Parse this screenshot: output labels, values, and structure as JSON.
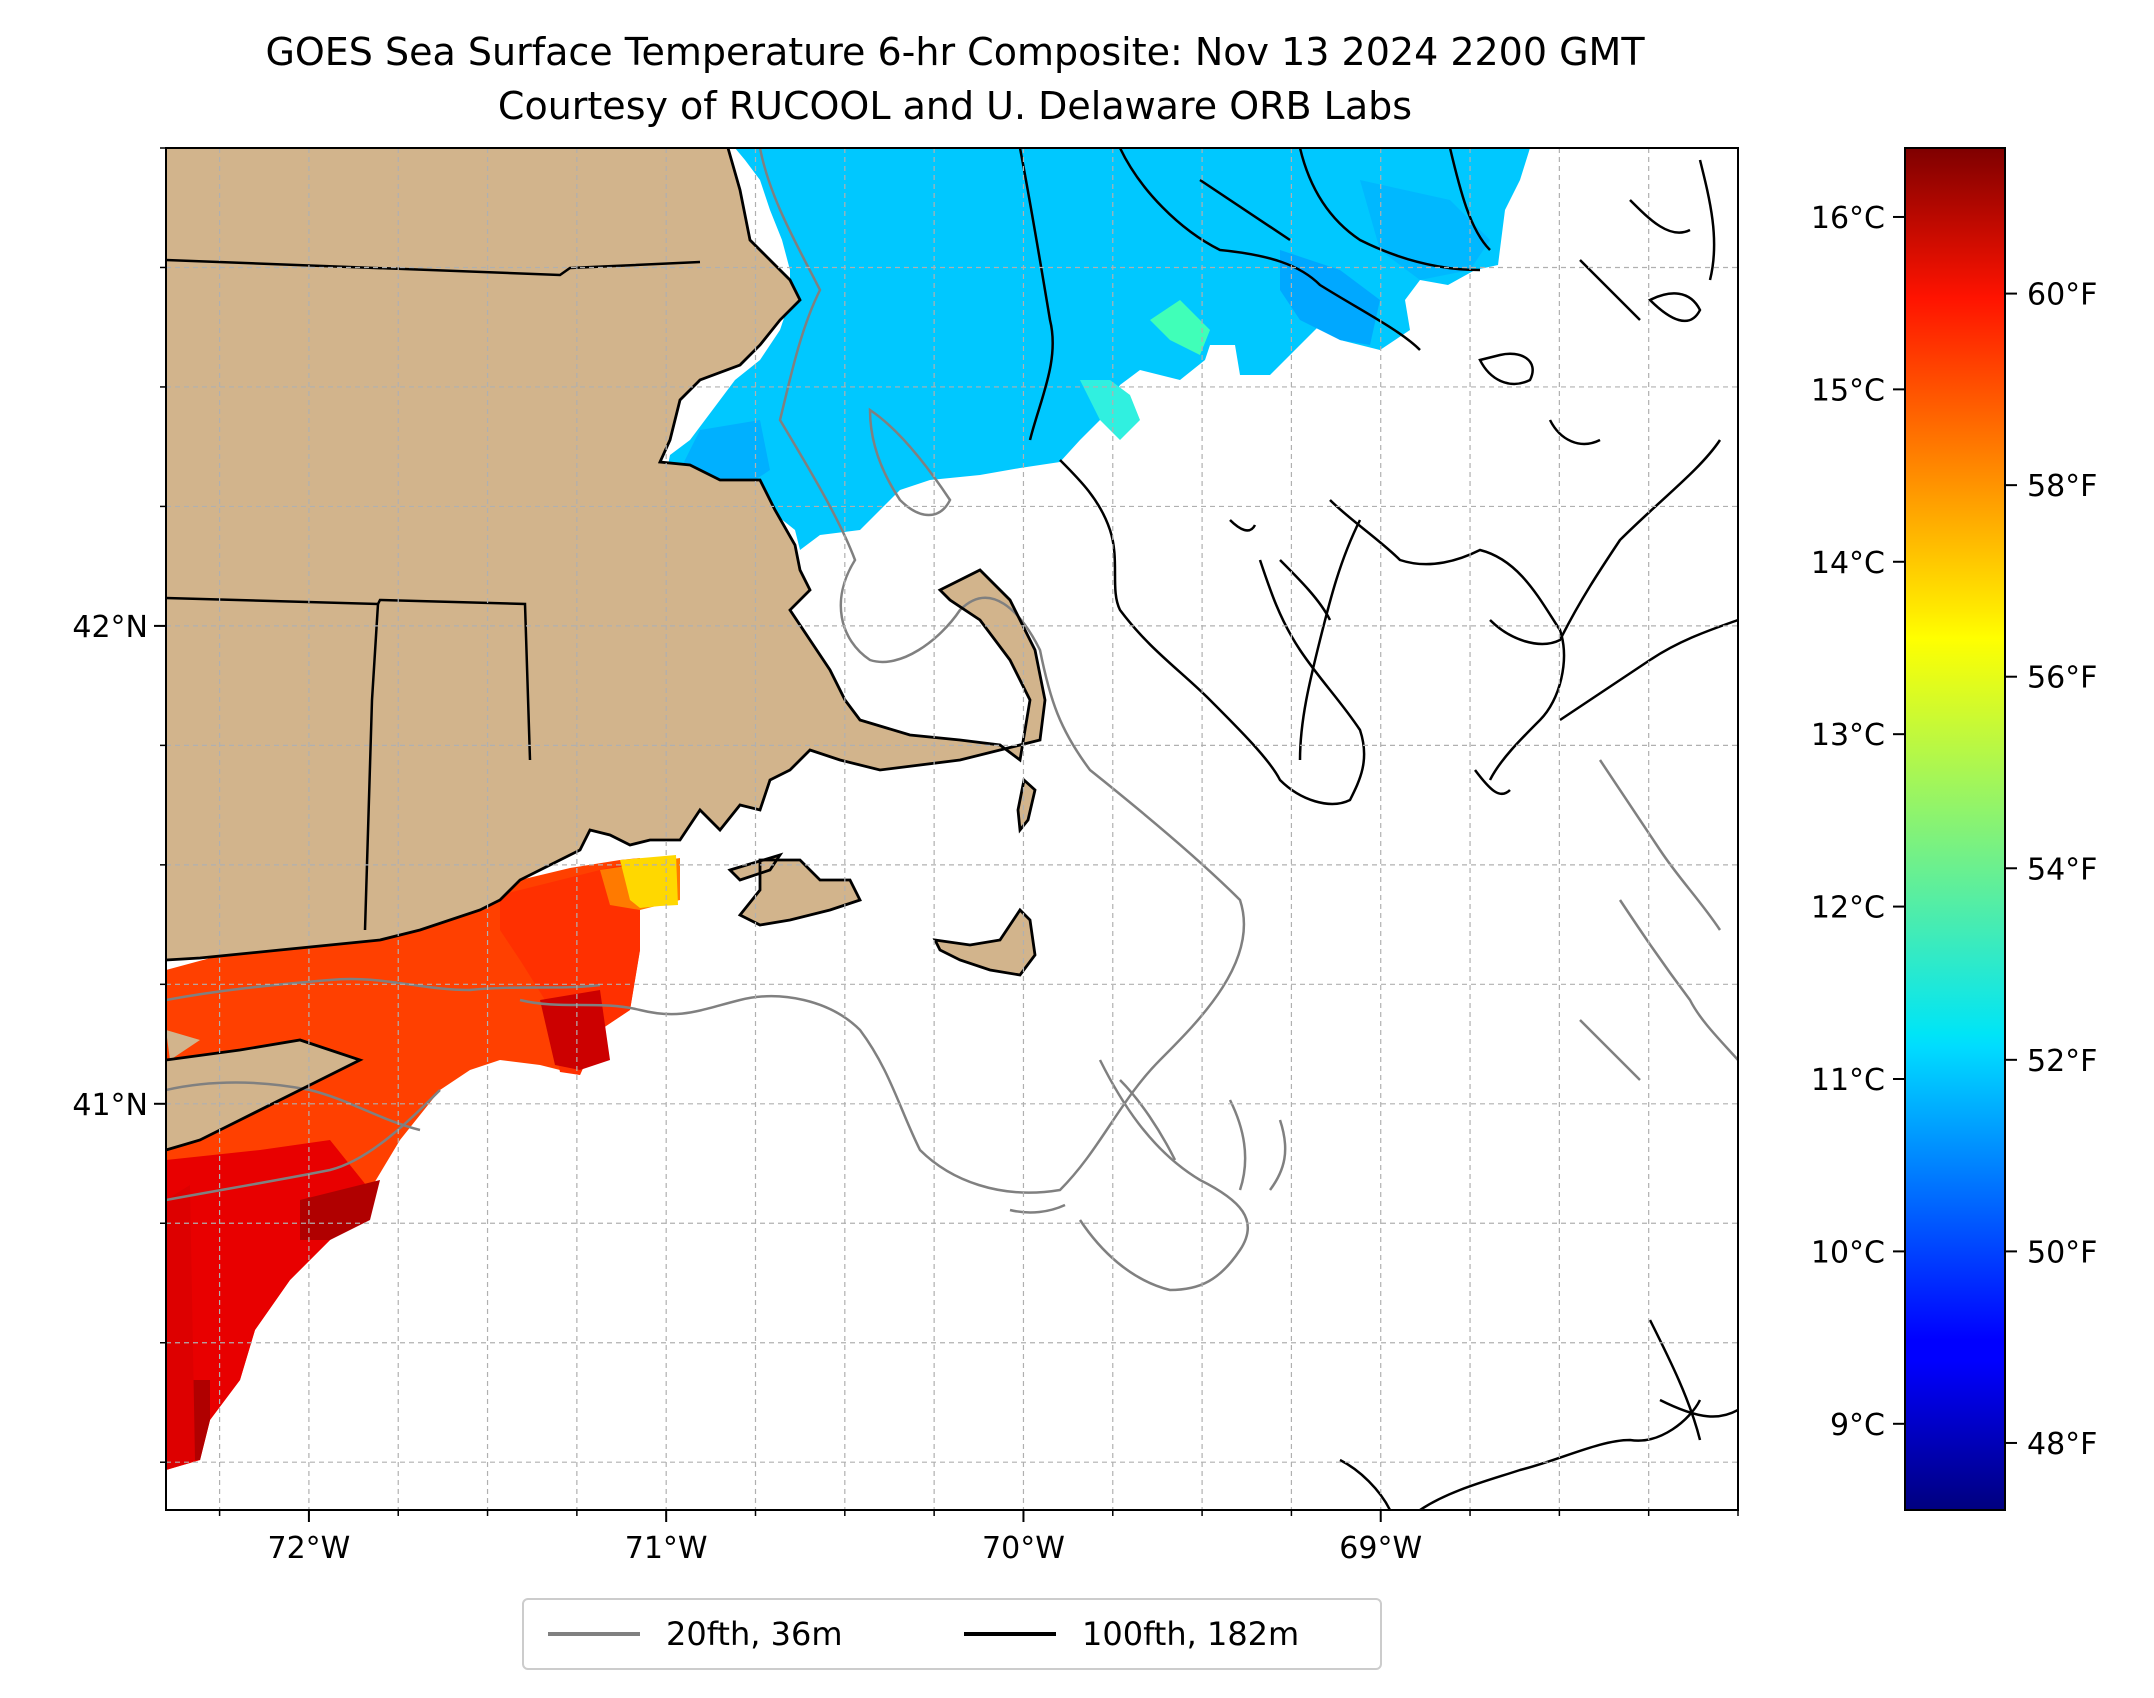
{
  "title": {
    "line1": "GOES Sea Surface Temperature 6-hr Composite: Nov 13 2024 2200 GMT",
    "line2": "Courtesy of RUCOOL and U. Delaware ORB Labs"
  },
  "map": {
    "lon_range": [
      -72.4,
      -68.0
    ],
    "lat_range": [
      40.15,
      43.0
    ],
    "lon_ticks": [
      {
        "value": -72,
        "label": "72°W"
      },
      {
        "value": -71,
        "label": "71°W"
      },
      {
        "value": -70,
        "label": "70°W"
      },
      {
        "value": -69,
        "label": "69°W"
      }
    ],
    "lat_ticks": [
      {
        "value": 42,
        "label": "42°N"
      },
      {
        "value": 41,
        "label": "41°N"
      }
    ],
    "grid": true,
    "colors": {
      "land": "#d2b48c",
      "coast": "#000000",
      "isobath_20fth": "#808080",
      "isobath_100fth": "#000000",
      "grid": "#b0b0b0"
    }
  },
  "colorbar": {
    "colormap": "jet",
    "celsius_range": [
      8.5,
      16.4
    ],
    "celsius_ticks": [
      {
        "value": 9,
        "label": "9°C"
      },
      {
        "value": 10,
        "label": "10°C"
      },
      {
        "value": 11,
        "label": "11°C"
      },
      {
        "value": 12,
        "label": "12°C"
      },
      {
        "value": 13,
        "label": "13°C"
      },
      {
        "value": 14,
        "label": "14°C"
      },
      {
        "value": 15,
        "label": "15°C"
      },
      {
        "value": 16,
        "label": "16°C"
      }
    ],
    "fahrenheit_ticks": [
      {
        "value": 48,
        "label": "48°F"
      },
      {
        "value": 50,
        "label": "50°F"
      },
      {
        "value": 52,
        "label": "52°F"
      },
      {
        "value": 54,
        "label": "54°F"
      },
      {
        "value": 56,
        "label": "56°F"
      },
      {
        "value": 58,
        "label": "58°F"
      },
      {
        "value": 60,
        "label": "60°F"
      }
    ]
  },
  "legend": {
    "items": [
      {
        "label": "20fth, 36m",
        "color": "#808080"
      },
      {
        "label": "100fth, 182m",
        "color": "#000000"
      }
    ]
  }
}
